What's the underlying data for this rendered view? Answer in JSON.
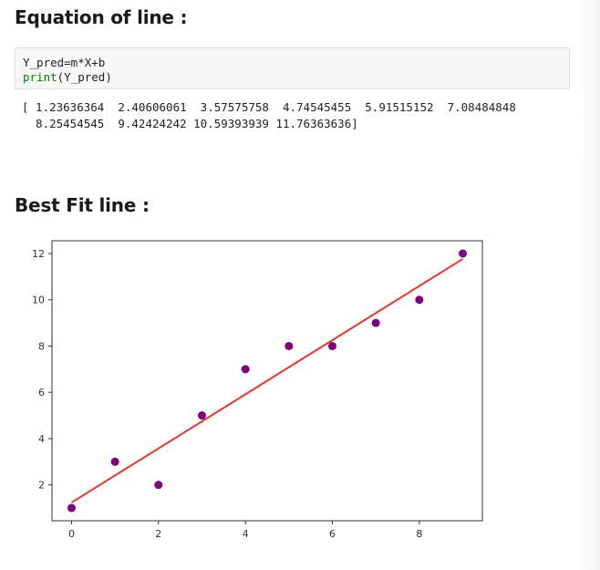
{
  "headings": {
    "equation": "Equation of line :",
    "best_fit": "Best Fit line :"
  },
  "code": {
    "line1": "Y_pred=m*X+b",
    "line2_fn": "print",
    "line2_args": "(Y_pred)"
  },
  "output": {
    "line1": "[ 1.23636364  2.40606061  3.57575758  4.74545455  5.91515152  7.08484848",
    "line2": "  8.25454545  9.42424242 10.59393939 11.76363636]"
  },
  "colors": {
    "points": "#800080",
    "line": "#e8342a"
  },
  "chart_data": {
    "type": "scatter",
    "x": [
      0,
      1,
      2,
      3,
      4,
      5,
      6,
      7,
      8,
      9
    ],
    "y": [
      1,
      3,
      2,
      5,
      7,
      8,
      8,
      9,
      10,
      12
    ],
    "fit_line": {
      "x": [
        0,
        9
      ],
      "y": [
        1.23636364,
        11.76363636
      ]
    },
    "x_ticks": [
      0,
      2,
      4,
      6,
      8
    ],
    "y_ticks": [
      2,
      4,
      6,
      8,
      10,
      12
    ],
    "xlim": [
      -0.45,
      9.45
    ],
    "ylim": [
      0.45,
      12.55
    ],
    "title": "",
    "xlabel": "",
    "ylabel": "",
    "grid": false
  }
}
